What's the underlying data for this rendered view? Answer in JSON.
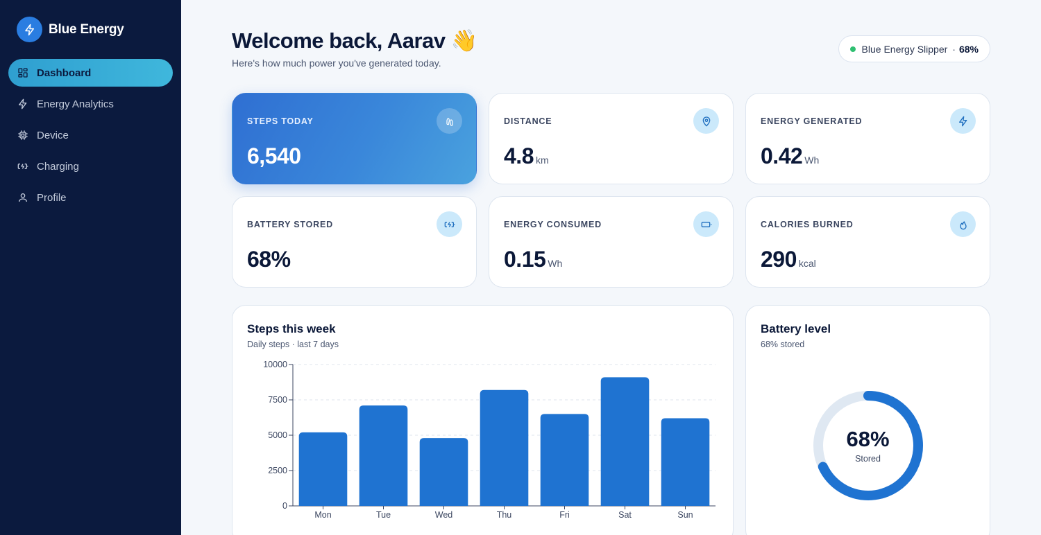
{
  "app": {
    "name": "Blue Energy",
    "logo_icon": "bolt-icon"
  },
  "sidebar": {
    "items": [
      {
        "label": "Dashboard",
        "icon": "dashboard-icon",
        "active": true
      },
      {
        "label": "Energy Analytics",
        "icon": "bolt-icon",
        "active": false
      },
      {
        "label": "Device",
        "icon": "chip-icon",
        "active": false
      },
      {
        "label": "Charging",
        "icon": "battery-charging-icon",
        "active": false
      },
      {
        "label": "Profile",
        "icon": "user-icon",
        "active": false
      }
    ]
  },
  "header": {
    "welcome": "Welcome back, Aarav 👋",
    "subtitle": "Here's how much power you've generated today.",
    "device": {
      "name": "Blue Energy Slipper",
      "separator": "·",
      "battery": "68%",
      "status_color": "#2fbf71"
    }
  },
  "stats": [
    {
      "label": "STEPS TODAY",
      "value": "6,540",
      "unit": "",
      "icon": "footprints-icon"
    },
    {
      "label": "DISTANCE",
      "value": "4.8",
      "unit": "km",
      "icon": "map-pin-icon"
    },
    {
      "label": "ENERGY GENERATED",
      "value": "0.42",
      "unit": "Wh",
      "icon": "bolt-icon"
    },
    {
      "label": "BATTERY STORED",
      "value": "68%",
      "unit": "",
      "icon": "battery-charging-icon"
    },
    {
      "label": "ENERGY CONSUMED",
      "value": "0.15",
      "unit": "Wh",
      "icon": "battery-icon"
    },
    {
      "label": "CALORIES BURNED",
      "value": "290",
      "unit": "kcal",
      "icon": "flame-icon"
    }
  ],
  "steps_panel": {
    "title": "Steps this week",
    "subtitle": "Daily steps · last 7 days"
  },
  "battery_panel": {
    "title": "Battery level",
    "subtitle": "68% stored",
    "value": "68%",
    "label": "Stored",
    "level": 0.68
  },
  "colors": {
    "sidebar_bg": "#0b1a3e",
    "accent": "#1f73d1",
    "active_nav": "#3fb7dc",
    "ring_track": "#dfe8f2"
  },
  "chart_data": {
    "type": "bar",
    "title": "Steps this week",
    "subtitle": "Daily steps · last 7 days",
    "categories": [
      "Mon",
      "Tue",
      "Wed",
      "Thu",
      "Fri",
      "Sat",
      "Sun"
    ],
    "values": [
      5200,
      7100,
      4800,
      8200,
      6500,
      9100,
      6200
    ],
    "ylim": [
      0,
      10000
    ],
    "yticks": [
      0,
      2500,
      5000,
      7500,
      10000
    ],
    "xlabel": "",
    "ylabel": "",
    "grid": true,
    "color": "#1f73d1"
  }
}
